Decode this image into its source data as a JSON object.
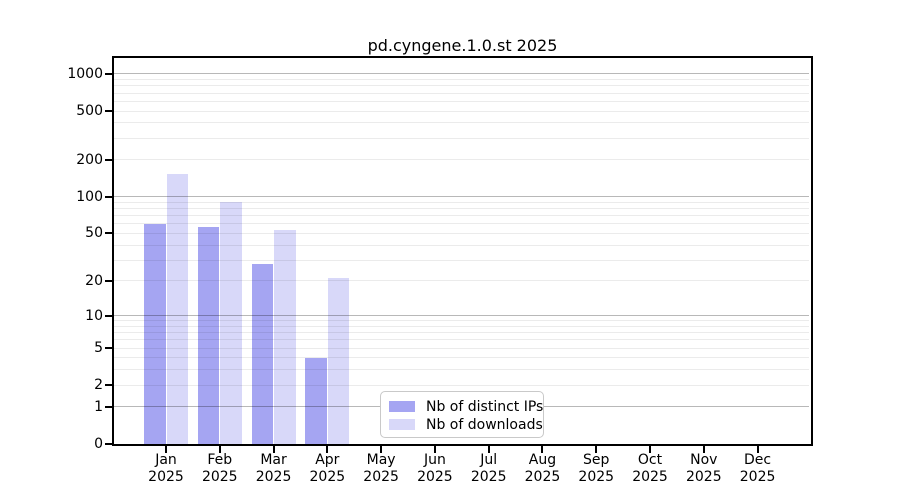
{
  "chart_data": {
    "type": "bar",
    "title": "pd.cyngene.1.0.st 2025",
    "categories": [
      "Jan",
      "Feb",
      "Mar",
      "Apr",
      "May",
      "Jun",
      "Jul",
      "Aug",
      "Sep",
      "Oct",
      "Nov",
      "Dec"
    ],
    "x_tick_line2": "2025",
    "series": [
      {
        "name": "Nb of distinct IPs",
        "color": "#a5a5f2",
        "values": [
          60,
          57,
          28,
          4,
          0,
          0,
          0,
          0,
          0,
          0,
          0,
          0
        ]
      },
      {
        "name": "Nb of downloads",
        "color": "#d8d8f9",
        "values": [
          155,
          90,
          53,
          21,
          0,
          0,
          0,
          0,
          0,
          0,
          0,
          0
        ]
      }
    ],
    "y_axis": {
      "scale": "log10(1+x)",
      "ticks": [
        0,
        1,
        2,
        5,
        10,
        20,
        50,
        100,
        200,
        500,
        1000
      ],
      "major_gridlines": [
        1,
        10,
        100,
        1000
      ],
      "ylim": [
        0,
        1350
      ]
    },
    "legend": {
      "position": "inside-bottom-center"
    },
    "grid": "minor light gray, major darker gray, drawn over bars"
  }
}
